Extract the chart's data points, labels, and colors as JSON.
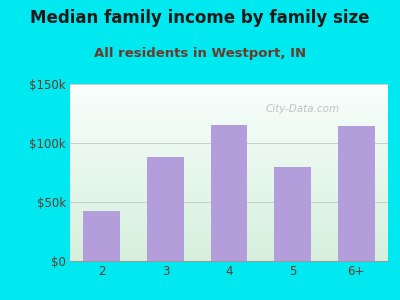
{
  "title": "Median family income by family size",
  "subtitle": "All residents in Westport, IN",
  "categories": [
    "2",
    "3",
    "4",
    "5",
    "6+"
  ],
  "values": [
    42000,
    88000,
    115000,
    80000,
    114000
  ],
  "bar_color": "#b39ddb",
  "background_outer": "#00e8f0",
  "title_color": "#1a1a1a",
  "subtitle_color": "#6b3a2a",
  "tick_label_color": "#6b3a2a",
  "ylim": [
    0,
    150000
  ],
  "yticks": [
    0,
    50000,
    100000,
    150000
  ],
  "ytick_labels": [
    "$0",
    "$50k",
    "$100k",
    "$150k"
  ],
  "title_fontsize": 12,
  "subtitle_fontsize": 9.5,
  "tick_fontsize": 8.5,
  "watermark": "City-Data.com"
}
